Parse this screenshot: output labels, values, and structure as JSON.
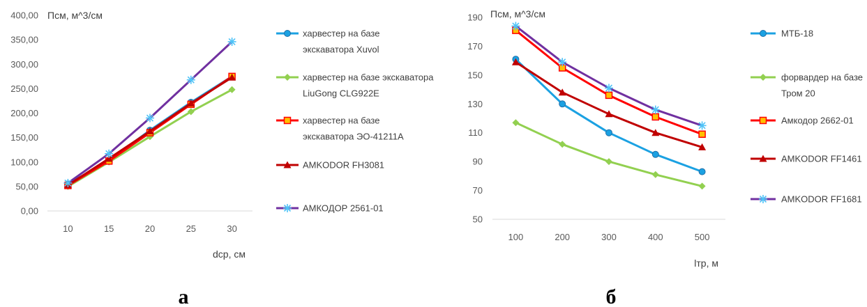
{
  "chart_data": [
    {
      "type": "line",
      "title": "",
      "ylabel": "Псм, м^3/см",
      "xlabel": "dср, см",
      "caption": "а",
      "categories": [
        "10",
        "15",
        "20",
        "25",
        "30"
      ],
      "ylim": [
        0,
        400
      ],
      "yticks": [
        "0,00",
        "50,00",
        "100,00",
        "150,00",
        "200,00",
        "250,00",
        "300,00",
        "350,00",
        "400,00"
      ],
      "grid": false,
      "legend": "right",
      "series": [
        {
          "name": "харвестер на базе экскаватора Xuvol",
          "values": [
            55,
            103,
            165,
            222,
            275
          ],
          "color": "#1BA1E2",
          "marker": "circle"
        },
        {
          "name": "харвестер на базе экскаватора LiuGong CLG922E",
          "values": [
            50,
            100,
            152,
            203,
            248
          ],
          "color": "#92D050",
          "marker": "diamond"
        },
        {
          "name": "харвестер на базе экскаватора ЭО-41211А",
          "values": [
            52,
            102,
            160,
            218,
            275
          ],
          "color": "#FF0000",
          "marker": "square"
        },
        {
          "name": "AMKODOR FH3081",
          "values": [
            53,
            107,
            163,
            220,
            273
          ],
          "color": "#C00000",
          "marker": "triangle"
        },
        {
          "name": "АМКОДОР 2561-01",
          "values": [
            57,
            117,
            190,
            268,
            346
          ],
          "color": "#7030A0",
          "marker": "star"
        }
      ]
    },
    {
      "type": "line",
      "title": "",
      "ylabel": "Псм, м^3/см",
      "xlabel": "lтр, м",
      "caption": "б",
      "categories": [
        "100",
        "200",
        "300",
        "400",
        "500"
      ],
      "ylim": [
        50,
        190
      ],
      "yticks": [
        "50",
        "70",
        "90",
        "110",
        "130",
        "150",
        "170",
        "190"
      ],
      "grid": false,
      "legend": "right",
      "series": [
        {
          "name": "МТБ-18",
          "values": [
            161,
            130,
            110,
            95,
            83
          ],
          "color": "#1BA1E2",
          "marker": "circle"
        },
        {
          "name": "форвардер на базе Тром 20",
          "values": [
            117,
            102,
            90,
            81,
            73
          ],
          "color": "#92D050",
          "marker": "diamond"
        },
        {
          "name": "Амкодор 2662-01",
          "values": [
            181,
            155,
            136,
            121,
            109
          ],
          "color": "#FF0000",
          "marker": "square"
        },
        {
          "name": "AMKODOR FF1461",
          "values": [
            159,
            138,
            123,
            110,
            100
          ],
          "color": "#C00000",
          "marker": "triangle"
        },
        {
          "name": "AMKODOR FF1681",
          "values": [
            184,
            159,
            141,
            126,
            115
          ],
          "color": "#7030A0",
          "marker": "star"
        }
      ]
    }
  ]
}
